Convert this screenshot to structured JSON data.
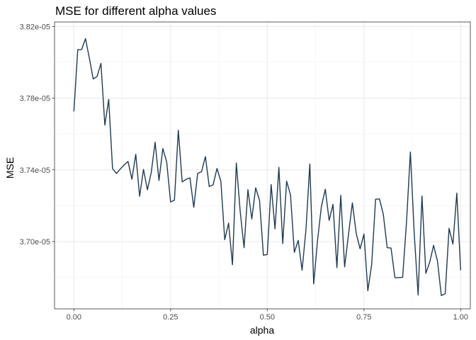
{
  "chart_data": {
    "type": "line",
    "title": "MSE for different alpha values",
    "xlabel": "alpha",
    "ylabel": "MSE",
    "xlim": [
      -0.05,
      1.025
    ],
    "ylim": [
      3.6625e-05,
      3.8225e-05
    ],
    "x_ticks": [
      0,
      0.25,
      0.5,
      0.75,
      1
    ],
    "x_tick_labels": [
      "0.00",
      "0.25",
      "0.50",
      "0.75",
      "1.00"
    ],
    "y_ticks": [
      3.7e-05,
      3.74e-05,
      3.78e-05,
      3.82e-05
    ],
    "y_tick_labels": [
      "3.70e-05",
      "3.74e-05",
      "3.78e-05",
      "3.82e-05"
    ],
    "grid": true,
    "line_color": "#1f3a52",
    "series": [
      {
        "x": [
          0,
          0.01,
          0.02,
          0.03,
          0.04,
          0.05,
          0.06,
          0.07,
          0.08,
          0.09,
          0.1,
          0.11,
          0.12,
          0.13,
          0.14,
          0.15,
          0.16,
          0.17,
          0.18,
          0.19,
          0.2,
          0.21,
          0.22,
          0.23,
          0.24,
          0.25,
          0.26,
          0.27,
          0.28,
          0.29,
          0.3,
          0.31,
          0.32,
          0.33,
          0.34,
          0.35,
          0.36,
          0.37,
          0.38,
          0.39,
          0.4,
          0.41,
          0.42,
          0.43,
          0.44,
          0.45,
          0.46,
          0.47,
          0.48,
          0.49,
          0.5,
          0.51,
          0.52,
          0.53,
          0.54,
          0.55,
          0.56,
          0.57,
          0.58,
          0.59,
          0.6,
          0.61,
          0.62,
          0.63,
          0.64,
          0.65,
          0.66,
          0.67,
          0.68,
          0.69,
          0.7,
          0.71,
          0.72,
          0.73,
          0.74,
          0.75,
          0.76,
          0.77,
          0.78,
          0.79,
          0.8,
          0.81,
          0.82,
          0.83,
          0.84,
          0.85,
          0.86,
          0.87,
          0.88,
          0.89,
          0.9,
          0.91,
          0.92,
          0.93,
          0.94,
          0.95,
          0.96,
          0.97,
          0.98,
          0.99,
          1.0
        ],
        "values": [
          3.7726e-05,
          3.807e-05,
          3.8071e-05,
          3.8132e-05,
          3.8023e-05,
          3.7907e-05,
          3.7921e-05,
          3.7994e-05,
          3.765e-05,
          3.7793e-05,
          3.7407e-05,
          3.738e-05,
          3.7405e-05,
          3.7428e-05,
          3.7447e-05,
          3.7348e-05,
          3.7487e-05,
          3.7253e-05,
          3.7403e-05,
          3.7289e-05,
          3.7385e-05,
          3.7554e-05,
          3.7341e-05,
          3.7519e-05,
          3.7444e-05,
          3.7221e-05,
          3.7231e-05,
          3.7621e-05,
          3.7333e-05,
          3.7347e-05,
          3.7356e-05,
          3.7191e-05,
          3.738e-05,
          3.739e-05,
          3.7474e-05,
          3.7307e-05,
          3.7317e-05,
          3.7408e-05,
          3.7337e-05,
          3.7011e-05,
          3.7103e-05,
          3.6871e-05,
          3.7438e-05,
          3.7168e-05,
          3.6966e-05,
          3.729e-05,
          3.7126e-05,
          3.73e-05,
          3.723e-05,
          3.6924e-05,
          3.6928e-05,
          3.7318e-05,
          3.7071e-05,
          3.7414e-05,
          3.6989e-05,
          3.7337e-05,
          3.7262e-05,
          3.694e-05,
          3.7007e-05,
          3.684e-05,
          3.7066e-05,
          3.7433e-05,
          3.6764e-05,
          3.7008e-05,
          3.7197e-05,
          3.7292e-05,
          3.7118e-05,
          3.7208e-05,
          3.6855e-05,
          3.7258e-05,
          3.6859e-05,
          3.704e-05,
          3.7216e-05,
          3.7045e-05,
          3.696e-05,
          3.7042e-05,
          3.6726e-05,
          3.6874e-05,
          3.7236e-05,
          3.7238e-05,
          3.7152e-05,
          3.6966e-05,
          3.6964e-05,
          3.6799e-05,
          3.6799e-05,
          3.6801e-05,
          3.7109e-05,
          3.75e-05,
          3.7043e-05,
          3.6702e-05,
          3.7254e-05,
          3.6823e-05,
          3.6885e-05,
          3.6979e-05,
          3.6892e-05,
          3.6699e-05,
          3.6709e-05,
          3.7074e-05,
          3.6986e-05,
          3.727e-05,
          3.684e-05
        ]
      }
    ]
  }
}
